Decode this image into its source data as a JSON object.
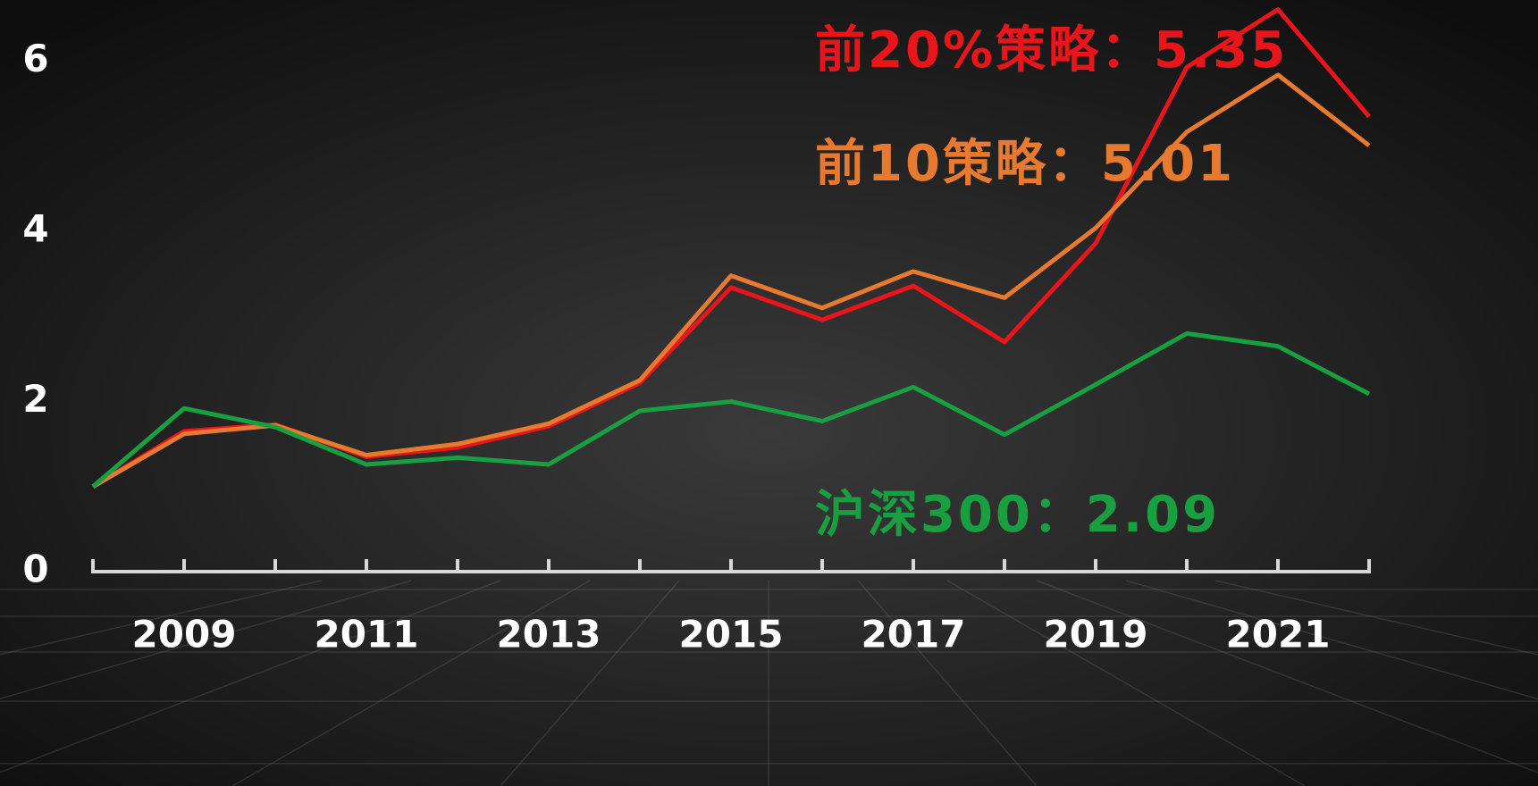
{
  "chart_data": {
    "type": "line",
    "x": [
      2008,
      2009,
      2010,
      2011,
      2012,
      2013,
      2014,
      2015,
      2016,
      2017,
      2018,
      2019,
      2020,
      2021,
      2022
    ],
    "xlim": [
      2008,
      2022
    ],
    "xticks": [
      2009,
      2011,
      2013,
      2015,
      2017,
      2019,
      2021
    ],
    "ylim": [
      0,
      6.7
    ],
    "yticks": [
      0,
      2,
      4,
      6
    ],
    "series": [
      {
        "color": "#e8161a",
        "values": [
          1.0,
          1.65,
          1.73,
          1.35,
          1.46,
          1.71,
          2.22,
          3.34,
          2.96,
          3.36,
          2.7,
          3.86,
          5.93,
          6.61,
          5.35
        ]
      },
      {
        "color": "#e87a30",
        "values": [
          1.0,
          1.62,
          1.72,
          1.37,
          1.5,
          1.74,
          2.25,
          3.48,
          3.1,
          3.53,
          3.22,
          4.04,
          5.17,
          5.84,
          5.01
        ]
      },
      {
        "color": "#18a040",
        "values": [
          1.0,
          1.92,
          1.7,
          1.26,
          1.34,
          1.26,
          1.89,
          2.0,
          1.77,
          2.17,
          1.61,
          2.2,
          2.8,
          2.65,
          2.09
        ]
      }
    ],
    "annotations": [
      {
        "text": "前20%策略：5.35",
        "color": "#e8161a"
      },
      {
        "text": "前10策略：5.01",
        "color": "#e87a30"
      },
      {
        "text": "沪深300：2.09",
        "color": "#18a040"
      }
    ]
  }
}
